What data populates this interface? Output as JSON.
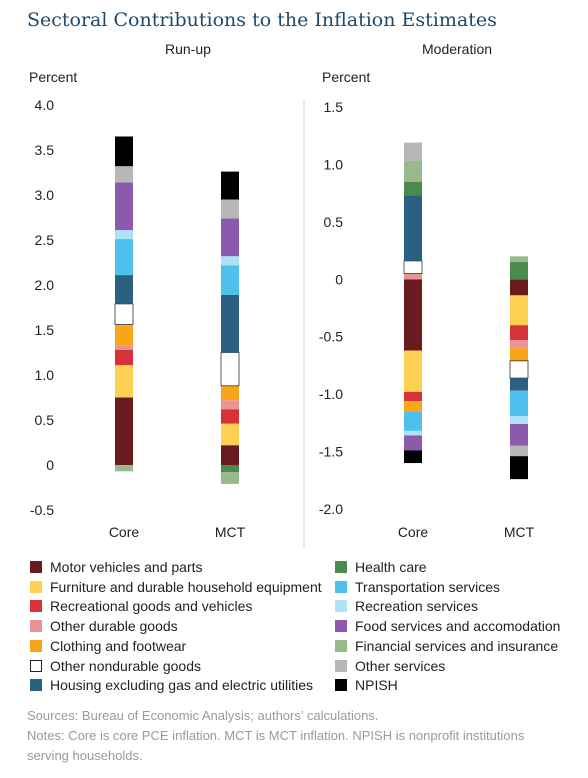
{
  "title": "Sectoral Contributions to the Inflation Estimates",
  "sources": "Sources: Bureau of Economic Analysis; authors’ calculations.",
  "notes": "Notes: Core is core PCE inflation. MCT is MCT inflation. NPISH is nonprofit institutions serving households.",
  "series": [
    {
      "name": "Motor vehicles and parts",
      "color": "#6b1a1f"
    },
    {
      "name": "Furniture and durable household equipment",
      "color": "#fdd151"
    },
    {
      "name": "Recreational goods and vehicles",
      "color": "#d7323a"
    },
    {
      "name": "Other durable goods",
      "color": "#e99393"
    },
    {
      "name": "Clothing and footwear",
      "color": "#f9a51a"
    },
    {
      "name": "Other nondurable goods",
      "color": "#ffffff"
    },
    {
      "name": "Housing excluding gas and electric utilities",
      "color": "#2a6180"
    },
    {
      "name": "Health care",
      "color": "#4a8a4f"
    },
    {
      "name": "Transportation services",
      "color": "#4fbfeb"
    },
    {
      "name": "Recreation services",
      "color": "#aee2f7"
    },
    {
      "name": "Food services and accomodation",
      "color": "#8c5aad"
    },
    {
      "name": "Financial services and insurance",
      "color": "#98b98b"
    },
    {
      "name": "Other services",
      "color": "#b7b7b7"
    },
    {
      "name": "NPISH",
      "color": "#000000"
    }
  ],
  "chart_data": [
    {
      "type": "bar",
      "stacked": true,
      "title": "Run-up",
      "ylabel": "Percent",
      "ylim": [
        -0.5,
        4.0
      ],
      "yticks": [
        4.0,
        3.5,
        3.0,
        2.5,
        2.0,
        1.5,
        1.0,
        0.5,
        0,
        -0.5
      ],
      "ytick_labels": [
        "4.0",
        "3.5",
        "3.0",
        "2.5",
        "2.0",
        "1.5",
        "1.0",
        "0.5",
        "0",
        "-0.5"
      ],
      "categories": [
        "Core",
        "MCT"
      ],
      "values": {
        "Core": [
          0.75,
          0.36,
          0.17,
          0.05,
          0.23,
          0.23,
          0.32,
          0.0,
          0.4,
          0.1,
          0.53,
          -0.07,
          0.18,
          0.33
        ],
        "MCT": [
          0.22,
          0.24,
          0.16,
          0.1,
          0.16,
          0.37,
          0.64,
          -0.08,
          0.33,
          0.1,
          0.42,
          -0.13,
          0.21,
          0.31
        ]
      }
    },
    {
      "type": "bar",
      "stacked": true,
      "title": "Moderation",
      "ylabel": "Percent",
      "ylim": [
        -2.0,
        1.5
      ],
      "yticks": [
        1.5,
        1.0,
        0.5,
        0,
        -0.5,
        -1.0,
        -1.5,
        -2.0
      ],
      "ytick_labels": [
        "1.5",
        "1.0",
        "0.5",
        "0",
        "-0.5",
        "-1.0",
        "-1.5",
        "-2.0"
      ],
      "categories": [
        "Core",
        "MCT"
      ],
      "values": {
        "Core": [
          -0.62,
          -0.36,
          -0.08,
          0.05,
          -0.09,
          0.11,
          0.57,
          0.12,
          -0.17,
          -0.04,
          -0.13,
          0.18,
          0.16,
          -0.11
        ],
        "MCT": [
          -0.14,
          -0.26,
          -0.13,
          -0.07,
          -0.11,
          -0.15,
          -0.11,
          0.15,
          -0.22,
          -0.07,
          -0.19,
          0.05,
          -0.09,
          -0.2
        ]
      }
    }
  ]
}
